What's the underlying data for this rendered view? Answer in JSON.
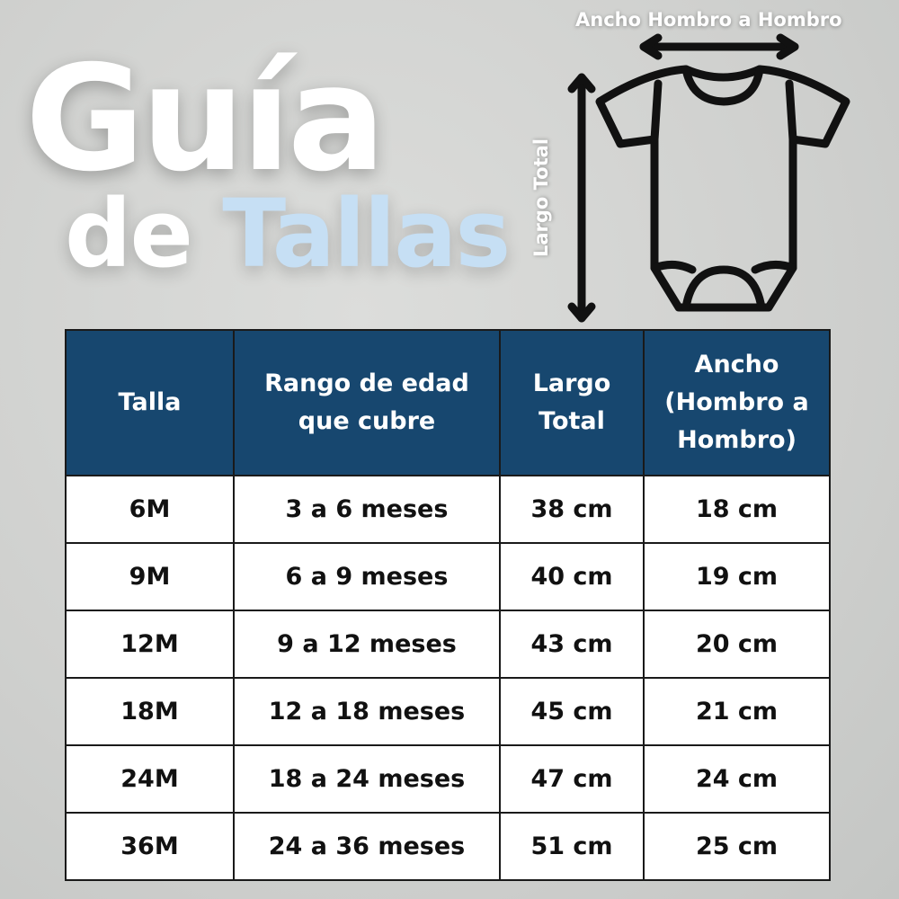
{
  "title": {
    "line1": "Guía",
    "line2_a": "de",
    "line2_b": "Tallas"
  },
  "colors": {
    "header_bg": "#17476f",
    "accent": "#c6dff4"
  },
  "diagram": {
    "width_label": "Ancho Hombro a Hombro",
    "length_label": "Largo Total",
    "icon": "baby-bodysuit-icon"
  },
  "table": {
    "headers": [
      "Talla",
      "Rango de edad que cubre",
      "Largo Total",
      "Ancho (Hombro a Hombro)"
    ],
    "rows": [
      [
        "6M",
        "3 a 6 meses",
        "38 cm",
        "18 cm"
      ],
      [
        "9M",
        "6 a 9 meses",
        "40 cm",
        "19 cm"
      ],
      [
        "12M",
        "9 a 12 meses",
        "43 cm",
        "20 cm"
      ],
      [
        "18M",
        "12 a 18 meses",
        "45 cm",
        "21 cm"
      ],
      [
        "24M",
        "18 a 24 meses",
        "47 cm",
        "24 cm"
      ],
      [
        "36M",
        "24 a 36 meses",
        "51 cm",
        "25 cm"
      ]
    ]
  }
}
